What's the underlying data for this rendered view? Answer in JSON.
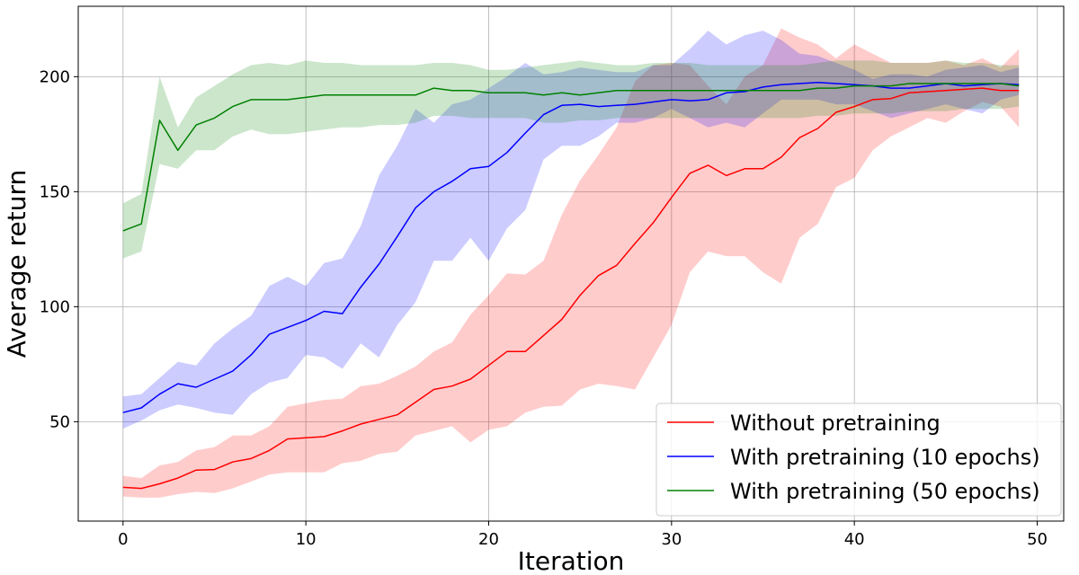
{
  "chart_data": {
    "type": "line",
    "title": "",
    "xlabel": "Iteration",
    "ylabel": "Average return",
    "xlim": [
      -2.45,
      51.45
    ],
    "ylim": [
      6.8,
      230.6
    ],
    "xticks": [
      0,
      10,
      20,
      30,
      40,
      50
    ],
    "yticks": [
      50,
      100,
      150,
      200
    ],
    "grid": true,
    "legend_position": "lower-right",
    "x": [
      0,
      1,
      2,
      3,
      4,
      5,
      6,
      7,
      8,
      9,
      10,
      11,
      12,
      13,
      14,
      15,
      16,
      17,
      18,
      19,
      20,
      21,
      22,
      23,
      24,
      25,
      26,
      27,
      28,
      29,
      30,
      31,
      32,
      33,
      34,
      35,
      36,
      37,
      38,
      39,
      40,
      41,
      42,
      43,
      44,
      45,
      46,
      47,
      48,
      49
    ],
    "series": [
      {
        "name": "Without pretraining",
        "color": "#ff0000",
        "band_color": "rgba(255,0,0,0.2)",
        "mean": [
          21.5,
          21,
          23,
          25.5,
          29,
          29.2,
          32.5,
          34,
          37.5,
          42.5,
          43,
          43.5,
          46,
          49,
          51,
          53,
          58.5,
          64,
          65.5,
          68.5,
          74.5,
          80.5,
          80.5,
          87.5,
          94.5,
          105,
          113.5,
          118,
          127.5,
          136.5,
          147.5,
          158,
          161.5,
          157,
          160,
          160,
          165,
          173.5,
          177.5,
          184.5,
          187,
          190,
          190.5,
          193,
          193.5,
          194,
          194.5,
          195,
          194,
          194
        ],
        "upper": [
          26.5,
          25.5,
          31,
          32.5,
          37.5,
          39,
          44,
          44,
          48,
          56.5,
          58,
          59.5,
          60,
          65.5,
          66.5,
          70,
          74,
          80.5,
          84.5,
          96.5,
          105,
          114.5,
          114,
          120,
          140,
          155,
          166,
          178,
          198,
          205,
          206,
          205,
          196,
          188,
          200,
          205,
          221,
          217,
          214,
          208,
          214,
          210,
          206,
          206,
          206,
          207,
          205,
          208,
          204,
          212
        ],
        "lower": [
          17.5,
          17,
          17,
          18.5,
          19.5,
          19,
          21,
          24,
          27,
          28,
          28,
          28,
          32,
          33,
          36,
          37,
          44,
          46,
          48,
          41,
          46.5,
          48,
          54,
          56.5,
          57,
          64,
          66.5,
          65.5,
          64,
          78,
          92,
          115,
          124,
          122,
          122,
          115,
          110,
          130,
          136,
          152,
          156,
          168,
          174,
          178,
          182,
          180,
          185,
          189,
          187,
          178
        ]
      },
      {
        "name": "With pretraining (10 epochs)",
        "color": "#0000ff",
        "band_color": "rgba(0,0,255,0.2)",
        "mean": [
          54,
          56,
          62,
          66.5,
          65,
          68.5,
          72,
          79,
          88,
          91,
          94,
          98,
          97,
          108.5,
          118.5,
          130.5,
          143,
          150,
          154.5,
          160,
          161,
          167,
          175.5,
          183.5,
          187.5,
          188,
          187,
          187.5,
          188,
          189,
          190,
          189.5,
          190,
          193,
          193.5,
          195.5,
          196.5,
          197,
          197.5,
          197,
          196.5,
          196,
          195,
          195,
          196,
          197,
          196,
          196.5,
          197,
          196.5
        ],
        "upper": [
          61,
          62,
          69,
          76,
          74.5,
          84,
          90.5,
          96,
          109,
          113,
          109,
          119,
          121,
          135,
          157,
          170,
          186,
          180,
          188,
          190,
          195,
          200,
          206,
          201,
          202,
          204,
          203,
          202,
          202,
          205,
          205,
          212,
          220,
          214,
          218,
          220,
          216,
          210,
          209,
          206,
          203,
          199,
          201,
          201,
          200,
          203,
          204,
          205,
          202,
          204
        ],
        "lower": [
          47,
          50.5,
          55,
          57.5,
          56,
          54,
          53,
          62,
          67,
          69,
          79,
          78,
          73,
          84,
          78,
          92,
          102,
          120,
          120,
          130,
          120,
          134,
          142,
          164,
          170,
          170,
          174,
          180,
          180,
          182,
          186,
          182,
          178,
          180,
          178,
          184,
          190,
          190,
          190,
          188,
          188,
          185,
          182,
          184,
          186,
          188,
          186,
          184,
          190,
          192
        ]
      },
      {
        "name": "With pretraining (50 epochs)",
        "color": "#008000",
        "band_color": "rgba(0,128,0,0.2)",
        "mean": [
          133,
          136,
          181,
          168,
          179,
          182,
          187,
          190,
          190,
          190,
          191,
          192,
          192,
          192,
          192,
          192,
          192,
          195,
          194,
          194,
          193,
          193,
          193,
          192,
          193,
          192,
          193,
          194,
          194,
          194,
          194,
          194,
          194,
          194,
          194,
          194,
          194,
          194,
          195,
          195,
          196,
          196,
          196,
          197,
          197,
          197,
          197,
          197,
          197,
          196
        ],
        "upper": [
          145,
          149,
          200,
          178,
          191,
          196,
          201,
          205,
          206,
          205,
          207,
          206,
          206,
          205,
          205,
          205,
          205,
          206,
          206,
          205,
          203,
          203,
          204,
          205,
          206,
          207,
          206,
          205,
          205,
          206,
          206,
          206,
          205,
          205,
          205,
          205,
          205,
          205,
          206,
          207,
          207,
          207,
          206,
          206,
          206,
          207,
          206,
          206,
          205,
          205
        ],
        "lower": [
          121,
          124,
          162,
          160,
          168,
          168,
          174,
          177,
          175,
          175,
          176,
          177,
          178,
          178,
          179,
          179,
          180,
          183,
          183,
          182,
          182,
          182,
          182,
          180,
          180,
          181,
          181,
          182,
          182,
          182,
          182,
          182,
          182,
          182,
          182,
          182,
          182,
          182,
          183,
          183,
          184,
          184,
          184,
          185,
          185,
          185,
          186,
          186,
          186,
          187
        ]
      }
    ]
  }
}
